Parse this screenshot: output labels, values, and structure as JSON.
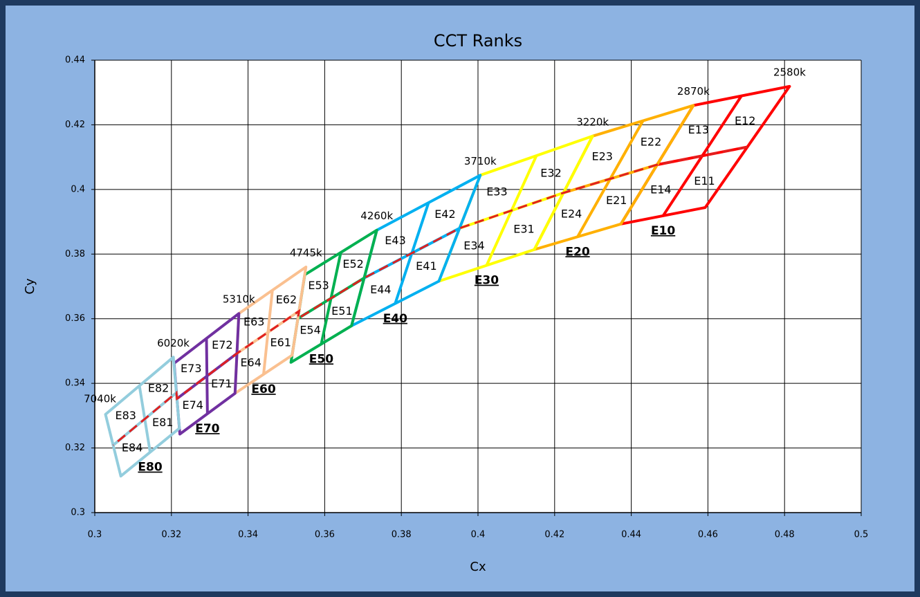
{
  "chart_data": {
    "type": "quadrangles",
    "title": "CCT Ranks",
    "x_label": "Cx",
    "y_label": "Cy",
    "xlim": [
      0.3,
      0.5
    ],
    "ylim": [
      0.3,
      0.44
    ],
    "xticks": [
      0.3,
      0.32,
      0.34,
      0.36,
      0.38,
      0.4,
      0.42,
      0.44,
      0.46,
      0.48,
      0.5
    ],
    "yticks": [
      0.3,
      0.32,
      0.34,
      0.36,
      0.38,
      0.4,
      0.42,
      0.44
    ],
    "grid": true,
    "cct_labels": [
      "2580k",
      "2870k",
      "3220k",
      "3710k",
      "4260k",
      "4745k",
      "5310k",
      "6020k",
      "7040k"
    ],
    "series": [
      {
        "name": "E10",
        "color": "#ff0000",
        "x": [
          0.4813,
          0.4562,
          0.4373,
          0.4593
        ],
        "y": [
          0.4319,
          0.426,
          0.3893,
          0.3944
        ],
        "bins": [
          "E11",
          "E12",
          "E13",
          "E14"
        ]
      },
      {
        "name": "E20",
        "color": "#ffb000",
        "x": [
          0.4562,
          0.4299,
          0.4147,
          0.4373
        ],
        "y": [
          0.426,
          0.4165,
          0.3814,
          0.3893
        ],
        "bins": [
          "E21",
          "E22",
          "E23",
          "E24"
        ]
      },
      {
        "name": "E30",
        "color": "#ffff00",
        "x": [
          0.4299,
          0.4006,
          0.3898,
          0.4147
        ],
        "y": [
          0.4165,
          0.4044,
          0.3716,
          0.3814
        ],
        "bins": [
          "E31",
          "E32",
          "E33",
          "E34"
        ]
      },
      {
        "name": "E40",
        "color": "#00b0f0",
        "x": [
          0.4006,
          0.3736,
          0.367,
          0.3898
        ],
        "y": [
          0.4044,
          0.3874,
          0.3578,
          0.3716
        ],
        "bins": [
          "E41",
          "E42",
          "E43",
          "E44"
        ]
      },
      {
        "name": "E50",
        "color": "#00b050",
        "x": [
          0.3736,
          0.3548,
          0.3512,
          0.367
        ],
        "y": [
          0.3874,
          0.3736,
          0.3465,
          0.3578
        ],
        "bins": [
          "E51",
          "E52",
          "E53",
          "E54"
        ]
      },
      {
        "name": "E60",
        "color": "#fac090",
        "x": [
          0.3551,
          0.3376,
          0.3366,
          0.3515
        ],
        "y": [
          0.376,
          0.3616,
          0.3369,
          0.3487
        ],
        "bins": [
          "E61",
          "E62",
          "E63",
          "E64"
        ]
      },
      {
        "name": "E70",
        "color": "#7030a0",
        "x": [
          0.3376,
          0.3207,
          0.3222,
          0.3366
        ],
        "y": [
          0.3616,
          0.3462,
          0.3243,
          0.3369
        ],
        "bins": [
          "E71",
          "E72",
          "E73",
          "E74"
        ]
      },
      {
        "name": "E80",
        "color": "#93cddd",
        "x": [
          0.3205,
          0.3028,
          0.3068,
          0.3221
        ],
        "y": [
          0.3481,
          0.3304,
          0.3113,
          0.3261
        ],
        "bins": [
          "E81",
          "E82",
          "E83",
          "E84"
        ]
      }
    ]
  }
}
